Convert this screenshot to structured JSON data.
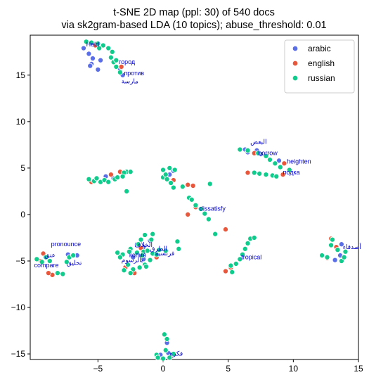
{
  "chart_data": {
    "type": "scatter",
    "title": "t-SNE 2D map (ppl: 30) of 540 docs",
    "subtitle": "via sk2gram-based LDA (10 topics); abuse_threshold: 0.01",
    "xlabel": "",
    "ylabel": "",
    "xlim": [
      -10.2,
      15
    ],
    "ylim": [
      -15.6,
      19.3
    ],
    "xticks": [
      -5,
      0,
      5,
      10,
      15
    ],
    "yticks": [
      -15,
      -10,
      -5,
      0,
      5,
      10,
      15
    ],
    "grid": false,
    "legend_position": "top-right",
    "series": [
      {
        "name": "arabic",
        "color": "#5a6ee8",
        "points": [
          [
            -6.1,
            17.9
          ],
          [
            -5.7,
            17.3
          ],
          [
            -5.4,
            16.8
          ],
          [
            -4.8,
            16.6
          ],
          [
            -5.5,
            16.2
          ],
          [
            -5.0,
            15.6
          ],
          [
            -5.6,
            16.0
          ],
          [
            -3.1,
            15.0
          ],
          [
            -3.3,
            15.6
          ],
          [
            -7.3,
            -4.3
          ],
          [
            -6.6,
            -4.4
          ],
          [
            -4.4,
            4.1
          ],
          [
            -3.8,
            3.9
          ],
          [
            -3.1,
            4.2
          ],
          [
            -1.5,
            -3.5
          ],
          [
            -2.0,
            -3.2
          ],
          [
            -2.3,
            -4.6
          ],
          [
            -1.5,
            -4.8
          ],
          [
            -1.0,
            -2.8
          ],
          [
            0.5,
            4.3
          ],
          [
            0.8,
            4.7
          ],
          [
            6.3,
            7.0
          ],
          [
            6.5,
            6.7
          ],
          [
            7.2,
            6.9
          ],
          [
            7.5,
            6.5
          ],
          [
            8.9,
            5.8
          ],
          [
            13.2,
            -4.9
          ],
          [
            13.7,
            -3.2
          ],
          [
            13.6,
            -4.4
          ],
          [
            0.4,
            -14.9
          ],
          [
            0.6,
            -15.3
          ],
          [
            -0.2,
            -15.1
          ],
          [
            0.3,
            -13.8
          ]
        ]
      },
      {
        "name": "english",
        "color": "#e8573c",
        "points": [
          [
            -5.2,
            18.2
          ],
          [
            -3.2,
            15.9
          ],
          [
            -4.0,
            4.3
          ],
          [
            -3.3,
            4.6
          ],
          [
            -5.5,
            3.5
          ],
          [
            0.8,
            3.7
          ],
          [
            1.9,
            3.2
          ],
          [
            2.3,
            3.1
          ],
          [
            2.5,
            0.8
          ],
          [
            1.9,
            0.0
          ],
          [
            4.8,
            -1.6
          ],
          [
            6.5,
            4.5
          ],
          [
            7.0,
            6.6
          ],
          [
            9.2,
            4.3
          ],
          [
            9.3,
            5.5
          ],
          [
            -9.2,
            -4.2
          ],
          [
            -9.4,
            -5.0
          ],
          [
            -8.5,
            -6.5
          ],
          [
            -8.8,
            -6.3
          ],
          [
            -2.9,
            -5.7
          ],
          [
            -2.2,
            -6.3
          ],
          [
            -0.5,
            -4.6
          ],
          [
            4.8,
            -6.1
          ],
          [
            5.2,
            -5.7
          ],
          [
            12.6,
            -4.7
          ],
          [
            12.9,
            -2.6
          ],
          [
            13.3,
            -3.5
          ],
          [
            -1.7,
            -3.6
          ]
        ]
      },
      {
        "name": "russian",
        "color": "#0fcb8c",
        "points": [
          [
            -5.5,
            18.5
          ],
          [
            -5.0,
            18.4
          ],
          [
            -4.6,
            18.2
          ],
          [
            -4.2,
            17.9
          ],
          [
            -3.9,
            17.5
          ],
          [
            -4.0,
            16.9
          ],
          [
            -3.8,
            16.4
          ],
          [
            -3.6,
            15.9
          ],
          [
            -3.3,
            15.3
          ],
          [
            -3.6,
            16.6
          ],
          [
            -5.9,
            18.6
          ],
          [
            -4.9,
            17.9
          ],
          [
            -5.7,
            3.8
          ],
          [
            -5.3,
            3.6
          ],
          [
            -5.1,
            3.9
          ],
          [
            -4.8,
            3.5
          ],
          [
            -4.5,
            3.7
          ],
          [
            -4.2,
            3.5
          ],
          [
            -3.7,
            3.8
          ],
          [
            -3.5,
            4.0
          ],
          [
            -2.8,
            4.6
          ],
          [
            -2.5,
            4.6
          ],
          [
            -3.0,
            4.5
          ],
          [
            -3.1,
            4.1
          ],
          [
            -2.8,
            2.5
          ],
          [
            0.0,
            4.0
          ],
          [
            0.2,
            4.3
          ],
          [
            0.0,
            4.8
          ],
          [
            0.5,
            5.0
          ],
          [
            0.9,
            4.8
          ],
          [
            0.3,
            3.8
          ],
          [
            0.6,
            3.4
          ],
          [
            0.8,
            2.9
          ],
          [
            1.5,
            3.0
          ],
          [
            2.0,
            1.8
          ],
          [
            2.2,
            1.6
          ],
          [
            2.5,
            1.0
          ],
          [
            2.9,
            0.6
          ],
          [
            3.2,
            0.1
          ],
          [
            3.5,
            -0.5
          ],
          [
            3.6,
            3.3
          ],
          [
            4.0,
            -2.1
          ],
          [
            5.9,
            7.0
          ],
          [
            6.5,
            6.9
          ],
          [
            7.3,
            6.6
          ],
          [
            7.9,
            6.3
          ],
          [
            8.2,
            5.9
          ],
          [
            8.6,
            5.5
          ],
          [
            9.0,
            5.1
          ],
          [
            7.0,
            4.5
          ],
          [
            7.4,
            4.4
          ],
          [
            7.9,
            4.3
          ],
          [
            8.4,
            4.2
          ],
          [
            8.7,
            4.1
          ],
          [
            9.7,
            4.8
          ],
          [
            -9.7,
            -4.8
          ],
          [
            -9.3,
            -5.1
          ],
          [
            -9.0,
            -4.6
          ],
          [
            -8.7,
            -5.0
          ],
          [
            -8.1,
            -6.3
          ],
          [
            -7.7,
            -6.4
          ],
          [
            -7.4,
            -5.1
          ],
          [
            -7.2,
            -4.6
          ],
          [
            -6.9,
            -4.4
          ],
          [
            -2.5,
            -3.7
          ],
          [
            -1.9,
            -3.2
          ],
          [
            -1.7,
            -2.7
          ],
          [
            -1.4,
            -2.2
          ],
          [
            -0.9,
            -2.7
          ],
          [
            -0.8,
            -2.1
          ],
          [
            -1.5,
            -4.0
          ],
          [
            -1.2,
            -3.9
          ],
          [
            -0.8,
            -4.2
          ],
          [
            -0.3,
            -3.8
          ],
          [
            0.2,
            -3.9
          ],
          [
            -1.0,
            -4.9
          ],
          [
            -1.4,
            -5.4
          ],
          [
            -0.5,
            -4.3
          ],
          [
            1.2,
            -3.7
          ],
          [
            1.1,
            -2.9
          ],
          [
            -2.6,
            -4.0
          ],
          [
            -2.0,
            -4.1
          ],
          [
            -1.6,
            -4.4
          ],
          [
            -3.5,
            -4.1
          ],
          [
            -3.1,
            -4.3
          ],
          [
            -2.7,
            -5.4
          ],
          [
            -2.3,
            -5.9
          ],
          [
            -1.8,
            -5.7
          ],
          [
            -1.3,
            -5.6
          ],
          [
            -2.5,
            -6.3
          ],
          [
            -3.0,
            -6.0
          ],
          [
            -3.3,
            -4.6
          ],
          [
            5.2,
            -5.5
          ],
          [
            5.6,
            -5.3
          ],
          [
            5.9,
            -4.8
          ],
          [
            6.1,
            -4.3
          ],
          [
            6.3,
            -3.7
          ],
          [
            6.5,
            -3.1
          ],
          [
            6.7,
            -2.6
          ],
          [
            7.0,
            -2.5
          ],
          [
            5.3,
            -6.2
          ],
          [
            12.2,
            -4.4
          ],
          [
            12.6,
            -4.6
          ],
          [
            12.9,
            -3.3
          ],
          [
            13.0,
            -2.7
          ],
          [
            13.4,
            -3.8
          ],
          [
            13.7,
            -5.0
          ],
          [
            13.9,
            -4.6
          ],
          [
            14.0,
            -4.0
          ],
          [
            0.1,
            -12.9
          ],
          [
            0.3,
            -13.4
          ],
          [
            0.2,
            -14.6
          ],
          [
            -0.5,
            -15.1
          ],
          [
            -0.4,
            -15.4
          ],
          [
            0.0,
            -15.5
          ],
          [
            0.8,
            -15.0
          ],
          [
            0.5,
            -15.4
          ]
        ]
      }
    ],
    "annotations": [
      {
        "text": "Held",
        "x": -5.9,
        "y": 18.1
      },
      {
        "text": "город",
        "x": -3.4,
        "y": 16.2
      },
      {
        "text": "против",
        "x": -3.0,
        "y": 15.0
      },
      {
        "text": "مارسة",
        "x": -3.2,
        "y": 14.1
      },
      {
        "text": "البعض",
        "x": 6.7,
        "y": 7.6
      },
      {
        "text": "borrow",
        "x": 7.3,
        "y": 6.4
      },
      {
        "text": "heighten",
        "x": 9.5,
        "y": 5.5
      },
      {
        "text": "подка",
        "x": 9.2,
        "y": 4.3
      },
      {
        "text": "dissatisfy",
        "x": 2.8,
        "y": 0.4
      },
      {
        "text": "pronounce",
        "x": -8.6,
        "y": -3.4
      },
      {
        "text": "عنق",
        "x": -9.1,
        "y": -4.6
      },
      {
        "text": "compare",
        "x": -9.9,
        "y": -5.7
      },
      {
        "text": "تحليق",
        "x": -7.4,
        "y": -5.4
      },
      {
        "text": "الخلاف",
        "x": -2.2,
        "y": -3.5
      },
      {
        "text": "الطرق",
        "x": -1.0,
        "y": -3.9
      },
      {
        "text": "فرنسيه",
        "x": -0.6,
        "y": -4.4
      },
      {
        "text": "копия",
        "x": -2.6,
        "y": -4.6
      },
      {
        "text": "بالرسوم",
        "x": -3.2,
        "y": -5.1
      },
      {
        "text": "tropical",
        "x": 6.0,
        "y": -4.8
      },
      {
        "text": "أصدقاء",
        "x": 13.8,
        "y": -3.7
      },
      {
        "text": "فكرة",
        "x": 0.5,
        "y": -15.2
      }
    ]
  }
}
